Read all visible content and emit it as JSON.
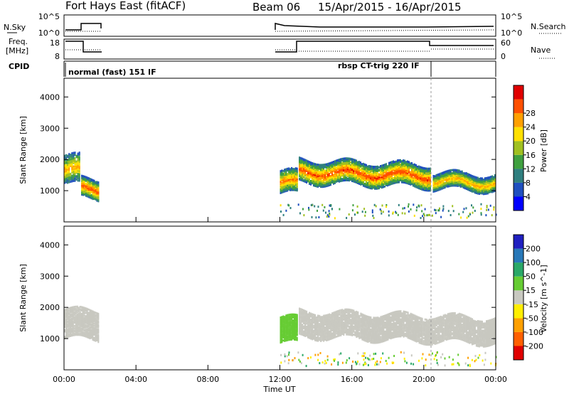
{
  "title": {
    "site": "Fort Hays East (fitACF)",
    "beam": "Beam 06",
    "dates": "15/Apr/2015 - 16/Apr/2015"
  },
  "panels": {
    "nsky": {
      "label": "N.Sky",
      "left_ticks": [
        "10^5",
        "10^0"
      ],
      "right_ticks": [
        "10^5",
        "10^0"
      ],
      "right_label": "N.Search"
    },
    "freq": {
      "label_line1": "Freq.",
      "label_line2": "[MHz]",
      "left_ticks": [
        "18",
        "8"
      ],
      "right_ticks": [
        "60",
        "0"
      ],
      "right_label": "Nave"
    },
    "cpid": {
      "label": "CPID",
      "segments": [
        "normal (fast) 151 IF",
        "rbsp CT-trig 220 IF"
      ]
    }
  },
  "colors": {
    "power": [
      "#0000ff",
      "#1f4fbf",
      "#2f7f7f",
      "#3fa03f",
      "#a0c020",
      "#ffe000",
      "#ffa000",
      "#ff5000",
      "#e00000"
    ],
    "velocity": [
      "#2020c0",
      "#2878b8",
      "#2aa868",
      "#66cc33",
      "#c8c8c0",
      "#ffee00",
      "#ffa000",
      "#ff6000",
      "#e00000"
    ]
  },
  "chart_data": [
    {
      "type": "heatmap",
      "name": "power",
      "ylabel": "Slant Range [km]",
      "yticks": [
        "1000",
        "2000",
        "3000",
        "4000"
      ],
      "ylim": [
        0,
        4600
      ],
      "xlabel": "",
      "xlim_hours": [
        0,
        24
      ],
      "colorbar_label": "Power [dB]",
      "colorbar_ticks": [
        "4",
        "8",
        "12",
        "16",
        "20",
        "24",
        "28"
      ],
      "colorbar_range": [
        0,
        30
      ],
      "bands": [
        {
          "t0": 0.0,
          "t1": 0.9,
          "r_center": 1700,
          "halfwidth": 450,
          "peak_db": 22
        },
        {
          "t0": 0.95,
          "t1": 1.95,
          "r_center": 1100,
          "halfwidth": 300,
          "peak_db": 26
        },
        {
          "t0": 12.0,
          "t1": 13.0,
          "r_center": 1300,
          "halfwidth": 350,
          "peak_db": 24
        },
        {
          "t0": 13.05,
          "t1": 20.4,
          "r_center": 1650,
          "halfwidth": 350,
          "peak_db": 26
        },
        {
          "t0": 20.5,
          "t1": 24.0,
          "r_center": 1350,
          "halfwidth": 250,
          "peak_db": 22
        }
      ]
    },
    {
      "type": "heatmap",
      "name": "velocity",
      "ylabel": "Slant Range [km]",
      "yticks": [
        "1000",
        "2000",
        "3000",
        "4000"
      ],
      "ylim": [
        0,
        4600
      ],
      "xlabel": "Time UT",
      "xticks": [
        "00:00",
        "04:00",
        "08:00",
        "12:00",
        "16:00",
        "20:00",
        "00:00"
      ],
      "xlim_hours": [
        0,
        24
      ],
      "colorbar_label": "Velocity [m s^-1]",
      "colorbar_ticks": [
        "200",
        "100",
        "50",
        "15",
        "-15",
        "-50",
        "-100",
        "-200"
      ],
      "colorbar_range": [
        -250,
        250
      ],
      "bands": [
        {
          "t0": 0.0,
          "t1": 1.95,
          "r_center": 1500,
          "halfwidth": 450,
          "velocity": 0
        },
        {
          "t0": 12.0,
          "t1": 13.0,
          "r_center": 1300,
          "halfwidth": 400,
          "velocity": 40
        },
        {
          "t0": 13.05,
          "t1": 24.0,
          "r_center": 1500,
          "halfwidth": 400,
          "velocity": 0
        }
      ]
    }
  ]
}
